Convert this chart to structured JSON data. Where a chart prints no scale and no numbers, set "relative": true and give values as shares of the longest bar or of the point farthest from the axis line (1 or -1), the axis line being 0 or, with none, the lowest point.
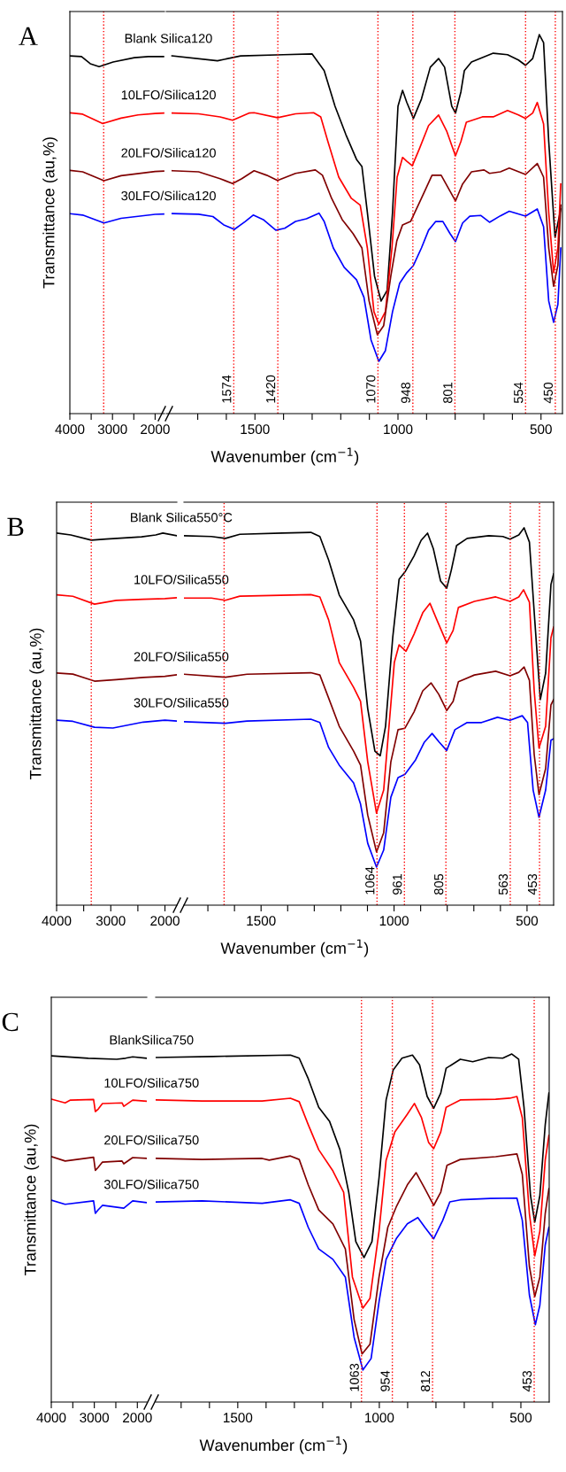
{
  "chart_data": [
    {
      "type": "line",
      "title": "A",
      "ylabel": "Transmittance (au,%)",
      "relative": true,
      "tick_labels": "x",
      "xlim": [
        4000,
        1780
      ],
      "xticks": [
        4000,
        {
          "value": 3500,
          "label": null
        },
        3000,
        {
          "value": 2500,
          "label": null
        },
        2000
      ],
      "ref_lines": [
        {
          "axis": "x",
          "value": 3207,
          "color": "#ff0000",
          "line_style": "dotted"
        }
      ],
      "series": [
        {
          "name": "Blank Silica120",
          "color": "#000000",
          "x": [
            4000,
            3727,
            3521,
            3314,
            2984,
            2488,
            2158,
            1993,
            1803
          ],
          "values": [
            1.0,
            0.998,
            0.978,
            0.97,
            0.983,
            0.995,
            0.998,
            0.998,
            0.998
          ]
        },
        {
          "name": "10LFO/Silica120",
          "color": "#ff0000",
          "x": [
            4000,
            3700,
            3230,
            2800,
            2400,
            2000,
            1800
          ],
          "values": [
            0.841,
            0.837,
            0.811,
            0.826,
            0.835,
            0.839,
            0.84
          ]
        },
        {
          "name": "20LFO/Silica120",
          "color": "#800000",
          "x": [
            4000,
            3700,
            3200,
            2800,
            2000,
            1800
          ],
          "values": [
            0.68,
            0.676,
            0.651,
            0.665,
            0.677,
            0.678
          ]
        },
        {
          "name": "30LFO/Silica120",
          "color": "#0000ff",
          "x": [
            4000,
            3700,
            3200,
            2800,
            2000,
            1800
          ],
          "values": [
            0.559,
            0.555,
            0.533,
            0.546,
            0.557,
            0.558
          ]
        }
      ]
    },
    {
      "type": "line",
      "xlabel": "Wavenumber (cm$^{−1}$)",
      "relative": true,
      "tick_labels": "x",
      "xlim": [
        1810,
        425
      ],
      "xticks": [
        {
          "value": 1700,
          "label": null
        },
        {
          "value": 1600,
          "label": null
        },
        1500,
        {
          "value": 1400,
          "label": null
        },
        {
          "value": 1300,
          "label": null
        },
        {
          "value": 1200,
          "label": null
        },
        {
          "value": 1100,
          "label": null
        },
        1000,
        {
          "value": 900,
          "label": null
        },
        {
          "value": 800,
          "label": null
        },
        {
          "value": 700,
          "label": null
        },
        {
          "value": 600,
          "label": null
        },
        500
      ],
      "ref_lines": [
        {
          "axis": "x",
          "value": 1574,
          "label": "1574",
          "color": "#ff0000",
          "line_style": "dotted"
        },
        {
          "axis": "x",
          "value": 1420,
          "label": "1420",
          "color": "#ff0000",
          "line_style": "dotted"
        },
        {
          "axis": "x",
          "value": 1070,
          "label": "1070",
          "color": "#ff0000",
          "line_style": "dotted"
        },
        {
          "axis": "x",
          "value": 948,
          "label": "948",
          "color": "#ff0000",
          "line_style": "dotted"
        },
        {
          "axis": "x",
          "value": 801,
          "label": "801",
          "color": "#ff0000",
          "line_style": "dotted"
        },
        {
          "axis": "x",
          "value": 554,
          "label": "554",
          "color": "#ff0000",
          "line_style": "dotted"
        },
        {
          "axis": "x",
          "value": 450,
          "label": "450",
          "color": "#ff0000",
          "line_style": "dotted"
        }
      ],
      "series": [
        {
          "color": "#000000",
          "x": [
            1790,
            1631,
            1550,
            1400,
            1300,
            1258,
            1220,
            1182,
            1145,
            1126,
            1107,
            1082,
            1059,
            1038,
            1019,
            1000,
            984,
            969,
            946,
            918,
            887,
            858,
            837,
            812,
            799,
            780,
            768,
            743,
            667,
            617,
            579,
            554,
            529,
            506,
            491,
            473,
            451,
            431
          ],
          "values": [
            0.944,
            0.931,
            0.944,
            0.947,
            0.949,
            0.905,
            0.811,
            0.736,
            0.671,
            0.652,
            0.531,
            0.363,
            0.297,
            0.325,
            0.531,
            0.811,
            0.853,
            0.821,
            0.779,
            0.83,
            0.914,
            0.937,
            0.914,
            0.811,
            0.793,
            0.849,
            0.905,
            0.928,
            0.951,
            0.947,
            0.933,
            0.919,
            0.937,
            1.0,
            0.979,
            0.718,
            0.465,
            0.54
          ]
        },
        {
          "color": "#ff0000",
          "x": [
            1789,
            1697,
            1622,
            1578,
            1521,
            1503,
            1421,
            1358,
            1295,
            1270,
            1245,
            1207,
            1163,
            1132,
            1107,
            1084,
            1067,
            1044,
            1021,
            1003,
            984,
            969,
            950,
            925,
            893,
            858,
            830,
            799,
            780,
            761,
            705,
            667,
            617,
            579,
            554,
            529,
            513,
            491,
            473,
            456,
            441,
            431
          ],
          "values": [
            0.793,
            0.791,
            0.783,
            0.774,
            0.793,
            0.794,
            0.781,
            0.791,
            0.794,
            0.783,
            0.718,
            0.624,
            0.568,
            0.55,
            0.437,
            0.269,
            0.236,
            0.269,
            0.437,
            0.624,
            0.676,
            0.666,
            0.654,
            0.699,
            0.76,
            0.788,
            0.746,
            0.68,
            0.718,
            0.769,
            0.783,
            0.783,
            0.8,
            0.788,
            0.779,
            0.793,
            0.821,
            0.764,
            0.531,
            0.372,
            0.437,
            0.606
          ]
        },
        {
          "color": "#800000",
          "x": [
            1789,
            1697,
            1622,
            1578,
            1546,
            1503,
            1459,
            1421,
            1358,
            1289,
            1264,
            1232,
            1195,
            1157,
            1126,
            1101,
            1072,
            1050,
            1025,
            1004,
            984,
            956,
            918,
            881,
            849,
            818,
            799,
            774,
            743,
            699,
            680,
            642,
            611,
            554,
            513,
            491,
            473,
            456,
            441,
            431
          ],
          "values": [
            0.641,
            0.638,
            0.62,
            0.607,
            0.62,
            0.641,
            0.629,
            0.615,
            0.634,
            0.643,
            0.629,
            0.568,
            0.512,
            0.475,
            0.437,
            0.297,
            0.208,
            0.232,
            0.363,
            0.456,
            0.498,
            0.507,
            0.568,
            0.629,
            0.629,
            0.587,
            0.561,
            0.606,
            0.638,
            0.643,
            0.634,
            0.638,
            0.648,
            0.631,
            0.66,
            0.624,
            0.437,
            0.336,
            0.391,
            0.55
          ]
        },
        {
          "color": "#0000ff",
          "x": [
            1789,
            1697,
            1647,
            1609,
            1572,
            1534,
            1506,
            1471,
            1427,
            1396,
            1358,
            1320,
            1276,
            1258,
            1226,
            1188,
            1145,
            1119,
            1094,
            1067,
            1044,
            1019,
            994,
            969,
            946,
            918,
            893,
            868,
            843,
            818,
            799,
            774,
            749,
            711,
            680,
            642,
            611,
            554,
            513,
            491,
            473,
            456,
            441,
            431
          ],
          "values": [
            0.528,
            0.526,
            0.52,
            0.498,
            0.486,
            0.507,
            0.524,
            0.512,
            0.484,
            0.489,
            0.507,
            0.514,
            0.529,
            0.507,
            0.437,
            0.386,
            0.353,
            0.307,
            0.194,
            0.138,
            0.166,
            0.269,
            0.344,
            0.372,
            0.391,
            0.437,
            0.484,
            0.507,
            0.507,
            0.475,
            0.454,
            0.503,
            0.521,
            0.523,
            0.505,
            0.522,
            0.534,
            0.521,
            0.54,
            0.493,
            0.297,
            0.241,
            0.288,
            0.437
          ]
        }
      ]
    },
    {
      "type": "line",
      "title": "B",
      "ylabel": "Transmittance (au,%)",
      "relative": true,
      "tick_labels": "x",
      "xlim": [
        4000,
        1780
      ],
      "xticks": [
        4000,
        {
          "value": 3500,
          "label": null
        },
        3000,
        {
          "value": 2500,
          "label": null
        },
        2000
      ],
      "ref_lines": [
        {
          "axis": "x",
          "value": 3360,
          "color": "#ff0000",
          "line_style": "dotted"
        }
      ],
      "series": [
        {
          "name": "Blank Silica550°C",
          "color": "#000000",
          "x": [
            4000,
            3739,
            3359,
            3085,
            2431,
            2170,
            2039,
            1791
          ],
          "values": [
            1.0,
            0.995,
            0.981,
            0.984,
            0.99,
            0.995,
            1.0,
            0.993
          ]
        },
        {
          "name": "10LFO/Silica550",
          "color": "#ff0000",
          "x": [
            4000,
            3700,
            3300,
            2900,
            2400,
            2000,
            1790
          ],
          "values": [
            0.834,
            0.83,
            0.809,
            0.819,
            0.822,
            0.824,
            0.826
          ]
        },
        {
          "name": "20LFO/Silica550",
          "color": "#800000",
          "x": [
            4000,
            3700,
            3300,
            2900,
            2400,
            2000,
            1790
          ],
          "values": [
            0.624,
            0.621,
            0.602,
            0.606,
            0.612,
            0.615,
            0.619
          ]
        },
        {
          "name": "30LFO/Silica550",
          "color": "#0000ff",
          "x": [
            4000,
            3700,
            3300,
            2960,
            2400,
            2000,
            1790
          ],
          "values": [
            0.497,
            0.494,
            0.478,
            0.476,
            0.492,
            0.497,
            0.495
          ]
        }
      ]
    },
    {
      "type": "line",
      "xlabel": "Wavenumber (cm$^{−1}$)",
      "relative": true,
      "tick_labels": "x",
      "xlim": [
        1790,
        400
      ],
      "xticks": [
        {
          "value": 1700,
          "label": null
        },
        {
          "value": 1600,
          "label": null
        },
        1500,
        {
          "value": 1400,
          "label": null
        },
        {
          "value": 1300,
          "label": null
        },
        {
          "value": 1200,
          "label": null
        },
        {
          "value": 1100,
          "label": null
        },
        1000,
        {
          "value": 900,
          "label": null
        },
        {
          "value": 800,
          "label": null
        },
        {
          "value": 700,
          "label": null
        },
        {
          "value": 600,
          "label": null
        },
        500
      ],
      "ref_lines": [
        {
          "axis": "x",
          "value": 1639,
          "color": "#ff0000",
          "line_style": "dotted"
        },
        {
          "axis": "x",
          "value": 1064,
          "label": "1064",
          "color": "#ff0000",
          "line_style": "dotted"
        },
        {
          "axis": "x",
          "value": 961,
          "label": "961",
          "color": "#ff0000",
          "line_style": "dotted"
        },
        {
          "axis": "x",
          "value": 805,
          "label": "805",
          "color": "#ff0000",
          "line_style": "dotted"
        },
        {
          "axis": "x",
          "value": 563,
          "label": "563",
          "color": "#ff0000",
          "line_style": "dotted"
        },
        {
          "axis": "x",
          "value": 453,
          "label": "453",
          "color": "#ff0000",
          "line_style": "dotted"
        }
      ],
      "series": [
        {
          "color": "#000000",
          "x": [
            1790,
            1687,
            1634,
            1580,
            1420,
            1313,
            1279,
            1246,
            1206,
            1152,
            1126,
            1099,
            1072,
            1052,
            1032,
            1005,
            981,
            959,
            925,
            898,
            874,
            852,
            825,
            802,
            785,
            765,
            725,
            644,
            591,
            564,
            531,
            511,
            491,
            471,
            450,
            430,
            410,
            400
          ],
          "values": [
            0.979,
            0.977,
            0.972,
            0.983,
            0.986,
            0.988,
            0.977,
            0.915,
            0.822,
            0.756,
            0.7,
            0.521,
            0.408,
            0.396,
            0.474,
            0.709,
            0.864,
            0.883,
            0.925,
            0.967,
            0.986,
            0.944,
            0.859,
            0.84,
            0.887,
            0.953,
            0.972,
            0.979,
            0.977,
            0.97,
            0.981,
            1.0,
            0.962,
            0.756,
            0.545,
            0.615,
            0.85,
            0.878
          ]
        },
        {
          "color": "#ff0000",
          "x": [
            1790,
            1687,
            1634,
            1580,
            1313,
            1279,
            1246,
            1206,
            1152,
            1126,
            1099,
            1066,
            1039,
            1019,
            999,
            981,
            955,
            925,
            892,
            865,
            839,
            802,
            778,
            758,
            698,
            618,
            564,
            531,
            513,
            491,
            473,
            455,
            430,
            410,
            400
          ],
          "values": [
            0.814,
            0.814,
            0.808,
            0.819,
            0.823,
            0.817,
            0.756,
            0.643,
            0.577,
            0.54,
            0.38,
            0.244,
            0.305,
            0.474,
            0.643,
            0.69,
            0.673,
            0.718,
            0.775,
            0.8,
            0.756,
            0.695,
            0.728,
            0.789,
            0.805,
            0.817,
            0.805,
            0.817,
            0.836,
            0.803,
            0.568,
            0.416,
            0.474,
            0.709,
            0.737
          ]
        },
        {
          "color": "#800000",
          "x": [
            1790,
            1634,
            1553,
            1313,
            1279,
            1246,
            1206,
            1152,
            1126,
            1099,
            1066,
            1039,
            1012,
            985,
            959,
            925,
            892,
            861,
            832,
            802,
            778,
            758,
            698,
            618,
            564,
            531,
            511,
            491,
            473,
            455,
            430,
            410,
            400
          ],
          "values": [
            0.612,
            0.604,
            0.612,
            0.616,
            0.61,
            0.549,
            0.474,
            0.408,
            0.371,
            0.239,
            0.141,
            0.192,
            0.38,
            0.465,
            0.469,
            0.512,
            0.568,
            0.589,
            0.559,
            0.516,
            0.54,
            0.592,
            0.61,
            0.62,
            0.608,
            0.617,
            0.631,
            0.596,
            0.399,
            0.293,
            0.362,
            0.531,
            0.545
          ]
        },
        {
          "color": "#0000ff",
          "x": [
            1790,
            1634,
            1553,
            1313,
            1279,
            1246,
            1206,
            1152,
            1126,
            1099,
            1066,
            1039,
            1012,
            985,
            959,
            919,
            886,
            857,
            830,
            802,
            771,
            725,
            671,
            611,
            564,
            518,
            498,
            477,
            455,
            430,
            410,
            400
          ],
          "values": [
            0.486,
            0.482,
            0.488,
            0.493,
            0.484,
            0.418,
            0.371,
            0.324,
            0.268,
            0.164,
            0.101,
            0.146,
            0.286,
            0.338,
            0.347,
            0.385,
            0.432,
            0.455,
            0.432,
            0.41,
            0.465,
            0.484,
            0.484,
            0.498,
            0.49,
            0.502,
            0.484,
            0.305,
            0.233,
            0.305,
            0.437,
            0.441
          ]
        }
      ]
    },
    {
      "type": "line",
      "title": "C",
      "ylabel": "Transmittance (au,%)",
      "relative": true,
      "tick_labels": "x",
      "xlim": [
        4000,
        1780
      ],
      "xticks": [
        4000,
        {
          "value": 3500,
          "label": null
        },
        3000,
        {
          "value": 2500,
          "label": null
        },
        2000
      ],
      "series": [
        {
          "name": "BlankSilica750",
          "color": "#000000",
          "x": [
            4000,
            3141,
            2480,
            2274,
            2108,
            1786
          ],
          "values": [
            1.0,
            0.993,
            0.99,
            0.993,
            0.997,
            0.993
          ]
        },
        {
          "name": "10LFO/Silica750",
          "color": "#ff0000",
          "x": [
            4000,
            3678,
            3554,
            3017,
            2976,
            2910,
            2811,
            2356,
            2315,
            2108,
            1786
          ],
          "values": [
            0.875,
            0.864,
            0.872,
            0.874,
            0.839,
            0.846,
            0.862,
            0.864,
            0.854,
            0.872,
            0.869
          ]
        },
        {
          "name": "20LFO/Silica750",
          "color": "#800000",
          "x": [
            4000,
            3678,
            3017,
            2976,
            2910,
            2811,
            2356,
            2315,
            2108,
            1786
          ],
          "values": [
            0.709,
            0.696,
            0.707,
            0.669,
            0.678,
            0.693,
            0.696,
            0.688,
            0.706,
            0.704
          ]
        },
        {
          "name": "30LFO/Silica750",
          "color": "#0000ff",
          "x": [
            4000,
            3678,
            3017,
            2976,
            2910,
            2811,
            2315,
            2108,
            1786
          ],
          "values": [
            0.583,
            0.571,
            0.581,
            0.545,
            0.555,
            0.568,
            0.56,
            0.581,
            0.576
          ]
        }
      ]
    },
    {
      "type": "line",
      "xlabel": "Wavenumber (cm$^{−1}$)",
      "relative": true,
      "tick_labels": "x",
      "xlim": [
        1790,
        400
      ],
      "xticks": [
        {
          "value": 1700,
          "label": null
        },
        {
          "value": 1600,
          "label": null
        },
        1500,
        {
          "value": 1400,
          "label": null
        },
        {
          "value": 1300,
          "label": null
        },
        {
          "value": 1200,
          "label": null
        },
        {
          "value": 1100,
          "label": null
        },
        1000,
        {
          "value": 900,
          "label": null
        },
        {
          "value": 800,
          "label": null
        },
        {
          "value": 700,
          "label": null
        },
        {
          "value": 600,
          "label": null
        },
        500
      ],
      "ref_lines": [
        {
          "axis": "x",
          "value": 1063,
          "label": "1063",
          "color": "#ff0000",
          "line_style": "dotted"
        },
        {
          "axis": "x",
          "value": 954,
          "label": "954",
          "color": "#ff0000",
          "line_style": "dotted"
        },
        {
          "axis": "x",
          "value": 812,
          "label": "812",
          "color": "#ff0000",
          "line_style": "dotted"
        },
        {
          "axis": "x",
          "value": 453,
          "label": "453",
          "color": "#ff0000",
          "line_style": "dotted"
        }
      ],
      "series": [
        {
          "color": "#000000",
          "x": [
            1789,
            1589,
            1314,
            1283,
            1251,
            1214,
            1176,
            1139,
            1108,
            1083,
            1054,
            1026,
            1001,
            976,
            951,
            920,
            883,
            858,
            831,
            808,
            783,
            764,
            714,
            670,
            614,
            564,
            532,
            508,
            489,
            466,
            451,
            433,
            414,
            401
          ],
          "values": [
            0.99,
            0.993,
            0.997,
            0.988,
            0.929,
            0.847,
            0.807,
            0.725,
            0.603,
            0.461,
            0.415,
            0.461,
            0.644,
            0.868,
            0.954,
            0.988,
            0.997,
            0.969,
            0.878,
            0.844,
            0.888,
            0.959,
            0.985,
            0.978,
            0.99,
            0.988,
            1.0,
            0.985,
            0.847,
            0.593,
            0.517,
            0.593,
            0.797,
            0.888
          ]
        },
        {
          "color": "#ff0000",
          "x": [
            1789,
            1626,
            1414,
            1314,
            1283,
            1251,
            1214,
            1164,
            1126,
            1095,
            1058,
            1033,
            1001,
            976,
            945,
            901,
            876,
            851,
            826,
            808,
            783,
            764,
            714,
            589,
            539,
            514,
            495,
            470,
            451,
            433,
            414,
            401
          ],
          "values": [
            0.868,
            0.865,
            0.865,
            0.873,
            0.863,
            0.797,
            0.725,
            0.664,
            0.603,
            0.359,
            0.27,
            0.298,
            0.491,
            0.695,
            0.776,
            0.827,
            0.858,
            0.817,
            0.746,
            0.728,
            0.776,
            0.847,
            0.868,
            0.87,
            0.873,
            0.878,
            0.817,
            0.542,
            0.42,
            0.491,
            0.695,
            0.766
          ]
        },
        {
          "color": "#800000",
          "x": [
            1789,
            1626,
            1414,
            1389,
            1314,
            1283,
            1251,
            1214,
            1164,
            1120,
            1089,
            1061,
            1033,
            1001,
            970,
            939,
            901,
            870,
            839,
            808,
            783,
            761,
            714,
            589,
            514,
            495,
            470,
            451,
            433,
            414,
            401
          ],
          "values": [
            0.7,
            0.697,
            0.7,
            0.695,
            0.707,
            0.697,
            0.624,
            0.552,
            0.512,
            0.44,
            0.237,
            0.138,
            0.166,
            0.359,
            0.502,
            0.563,
            0.624,
            0.659,
            0.613,
            0.565,
            0.603,
            0.68,
            0.697,
            0.705,
            0.713,
            0.654,
            0.39,
            0.303,
            0.359,
            0.542,
            0.613
          ]
        },
        {
          "color": "#0000ff",
          "x": [
            1789,
            1626,
            1414,
            1314,
            1283,
            1251,
            1214,
            1164,
            1120,
            1089,
            1058,
            1029,
            1001,
            976,
            939,
            901,
            864,
            839,
            808,
            776,
            751,
            714,
            608,
            514,
            495,
            470,
            449,
            433,
            414,
            401
          ],
          "values": [
            0.575,
            0.578,
            0.571,
            0.581,
            0.571,
            0.502,
            0.44,
            0.41,
            0.359,
            0.186,
            0.092,
            0.125,
            0.288,
            0.41,
            0.471,
            0.512,
            0.53,
            0.502,
            0.469,
            0.522,
            0.575,
            0.581,
            0.585,
            0.586,
            0.522,
            0.308,
            0.222,
            0.278,
            0.451,
            0.502
          ]
        }
      ]
    }
  ]
}
